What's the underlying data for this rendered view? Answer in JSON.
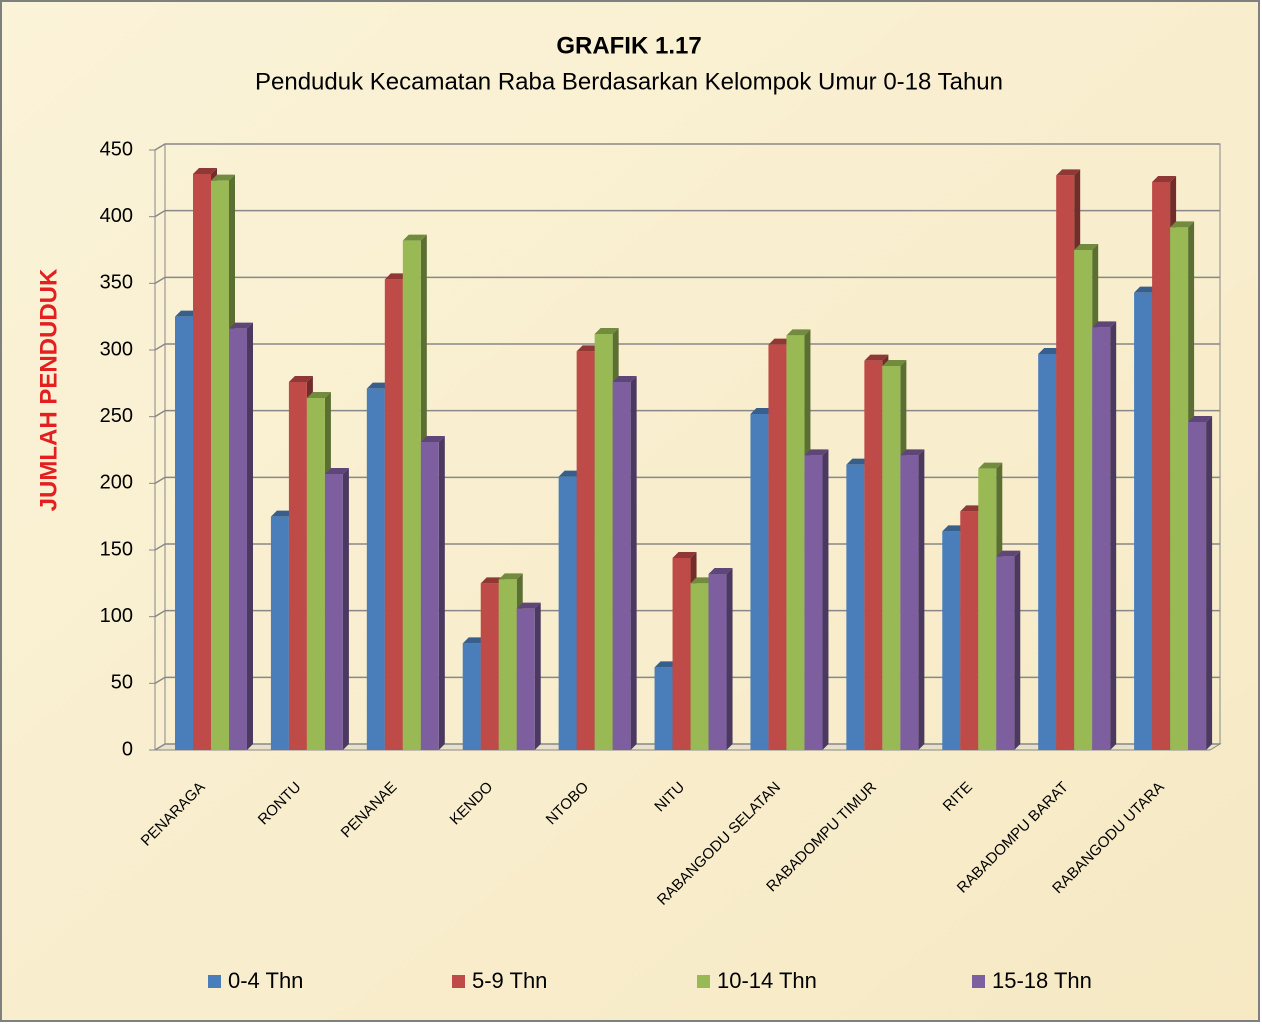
{
  "chart_data": {
    "type": "bar",
    "title": "GRAFIK 1.17",
    "subtitle": "Penduduk Kecamatan Raba Berdasarkan Kelompok Umur 0-18 Tahun",
    "y_label": "JUMLAH PENDUDUK",
    "categories": [
      "PENARAGA",
      "RONTU",
      "PENANAE",
      "KENDO",
      "NTOBO",
      "NITU",
      "RABANGODU SELATAN",
      "RABADOMPU TIMUR",
      "RITE",
      "RABADOMPU BARAT",
      "RABANGODU UTARA"
    ],
    "series": [
      {
        "name": "0-4 Thn",
        "color": "#4a7ebb",
        "values": [
          325,
          175,
          271,
          80,
          205,
          62,
          252,
          214,
          164,
          297,
          343
        ]
      },
      {
        "name": "5-9 Thn",
        "color": "#be4b48",
        "values": [
          432,
          276,
          353,
          125,
          299,
          144,
          304,
          292,
          179,
          431,
          426
        ]
      },
      {
        "name": "10-14 Thn",
        "color": "#98b954",
        "values": [
          427,
          264,
          382,
          128,
          312,
          125,
          311,
          288,
          211,
          375,
          392
        ]
      },
      {
        "name": "15-18 Thn",
        "color": "#7d5fa0",
        "values": [
          316,
          207,
          231,
          106,
          276,
          132,
          221,
          221,
          145,
          317,
          246
        ]
      }
    ],
    "ylim": [
      0,
      450
    ],
    "yticks": [
      0,
      50,
      100,
      150,
      200,
      250,
      300,
      350,
      400,
      450
    ],
    "grid": true,
    "legend": "bottom"
  }
}
